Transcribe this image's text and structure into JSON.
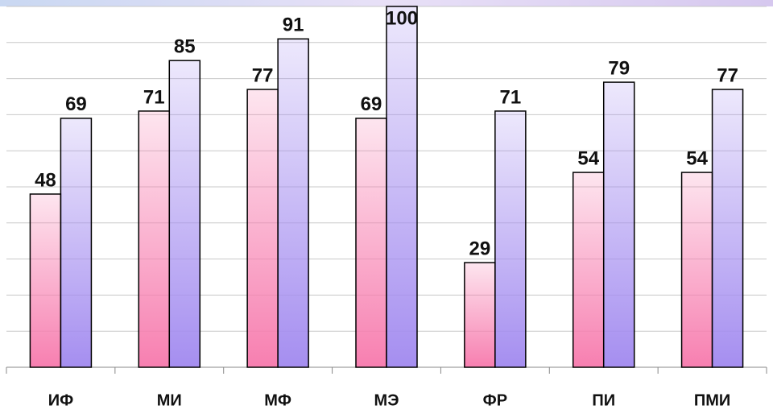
{
  "chart_data": {
    "type": "bar",
    "categories": [
      "ИФ",
      "МИ",
      "МФ",
      "МЭ",
      "ФР",
      "ПИ",
      "ПМИ"
    ],
    "series": [
      {
        "color": "#f77fb0",
        "values": [
          48,
          71,
          77,
          69,
          29,
          54,
          54
        ]
      },
      {
        "color": "#a58ef0",
        "values": [
          69,
          85,
          91,
          100,
          71,
          79,
          77
        ]
      }
    ],
    "ylim": [
      0,
      100
    ],
    "yticks": [
      0,
      10,
      20,
      30,
      40,
      50,
      60,
      70,
      80,
      90,
      100
    ],
    "grid": true
  }
}
